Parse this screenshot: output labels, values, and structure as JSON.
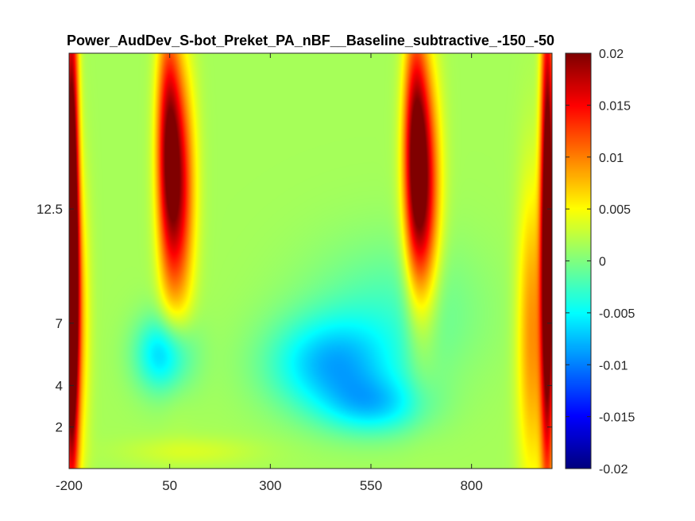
{
  "chart_data": {
    "type": "heatmap",
    "title": "Power_AudDev_S-bot_Preket_PA_nBF__Baseline_subtractive_-150_-50",
    "xlabel": "",
    "ylabel": "",
    "x_range": [
      -200,
      1000
    ],
    "x_ticks": [
      -200,
      50,
      300,
      550,
      800
    ],
    "x_tick_labels": [
      "-200",
      "50",
      "300",
      "550",
      "800"
    ],
    "y_range": [
      0,
      20
    ],
    "y_ticks": [
      2,
      4,
      7,
      12.5
    ],
    "y_tick_labels": [
      "2",
      "4",
      "7",
      "12.5"
    ],
    "colormap": "jet",
    "clim": [
      -0.02,
      0.02
    ],
    "colorbar_ticks": [
      0.02,
      0.015,
      0.01,
      0.005,
      0,
      -0.005,
      -0.01,
      -0.015,
      -0.02
    ],
    "colorbar_tick_labels": [
      "0.02",
      "0.015",
      "0.01",
      "0.005",
      "0",
      "-0.005",
      "-0.01",
      "-0.015",
      "-0.02"
    ],
    "background_value": 0.0015,
    "features": [
      {
        "x": -195,
        "y": 11,
        "value": 0.028,
        "x_spread": 12,
        "y_spread": 8
      },
      {
        "x": -185,
        "y": 7,
        "value": 0.008,
        "x_spread": 22,
        "y_spread": 5
      },
      {
        "x": 70,
        "y": 13.5,
        "value": 0.015,
        "x_spread": 28,
        "y_spread": 4
      },
      {
        "x": 45,
        "y": 16,
        "value": 0.012,
        "x_spread": 20,
        "y_spread": 4
      },
      {
        "x": 680,
        "y": 13.5,
        "value": 0.016,
        "x_spread": 28,
        "y_spread": 4
      },
      {
        "x": 660,
        "y": 16,
        "value": 0.012,
        "x_spread": 20,
        "y_spread": 4
      },
      {
        "x": 990,
        "y": 11,
        "value": 0.026,
        "x_spread": 12,
        "y_spread": 8
      },
      {
        "x": 950,
        "y": 6.5,
        "value": 0.008,
        "x_spread": 25,
        "y_spread": 5
      },
      {
        "x": 35,
        "y": 5.5,
        "value": -0.0085,
        "x_spread": 50,
        "y_spread": 1.3
      },
      {
        "x": 450,
        "y": 5,
        "value": -0.0085,
        "x_spread": 110,
        "y_spread": 1.6
      },
      {
        "x": 560,
        "y": 3,
        "value": -0.0065,
        "x_spread": 90,
        "y_spread": 1.0
      },
      {
        "x": 600,
        "y": 7.5,
        "value": -0.0035,
        "x_spread": 150,
        "y_spread": 2.5
      },
      {
        "x": 100,
        "y": 0.8,
        "value": 0.002,
        "x_spread": 120,
        "y_spread": 0.5
      }
    ]
  }
}
